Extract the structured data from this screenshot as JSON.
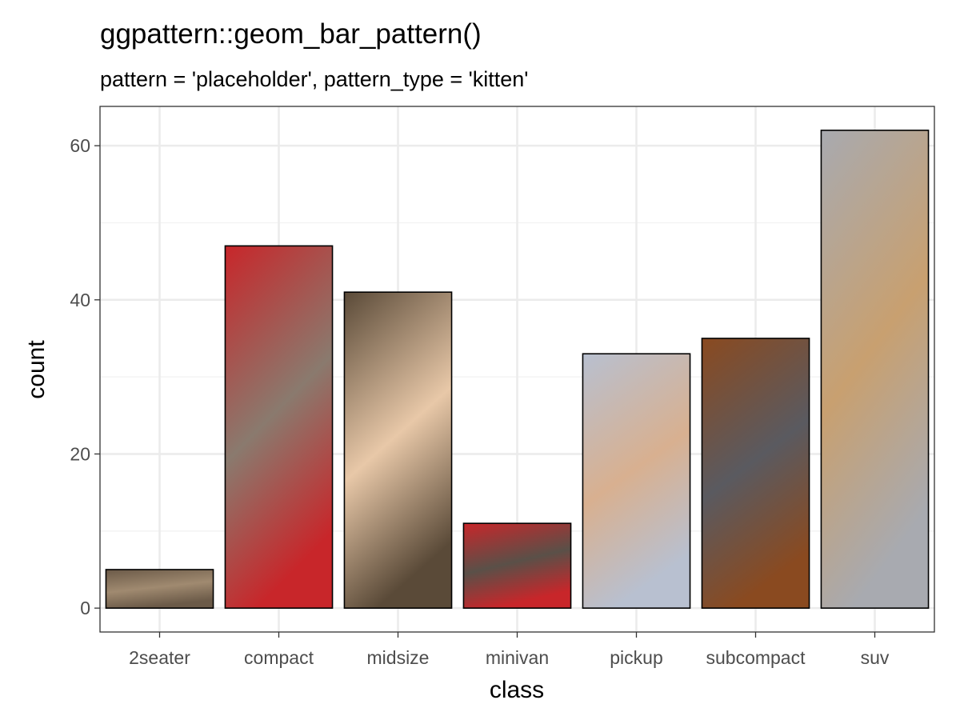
{
  "chart_data": {
    "type": "bar",
    "title": "ggpattern::geom_bar_pattern()",
    "subtitle": "pattern = 'placeholder', pattern_type = 'kitten'",
    "xlabel": "class",
    "ylabel": "count",
    "categories": [
      "2seater",
      "compact",
      "midsize",
      "minivan",
      "pickup",
      "subcompact",
      "suv"
    ],
    "values": [
      5,
      47,
      41,
      11,
      33,
      35,
      62
    ],
    "ylim": [
      -3.1,
      65.1
    ],
    "yticks": [
      0,
      20,
      40,
      60
    ],
    "grid": true,
    "pattern_colors": [
      [
        "#6b5a48",
        "#a08a70"
      ],
      [
        "#c8262a",
        "#8a7a6e"
      ],
      [
        "#5a4a38",
        "#e8c8a8"
      ],
      [
        "#c8262a",
        "#5a5048"
      ],
      [
        "#b8c0d0",
        "#d8b090"
      ],
      [
        "#8a4a20",
        "#5a5a60"
      ],
      [
        "#a8aab0",
        "#c8a070"
      ]
    ]
  }
}
